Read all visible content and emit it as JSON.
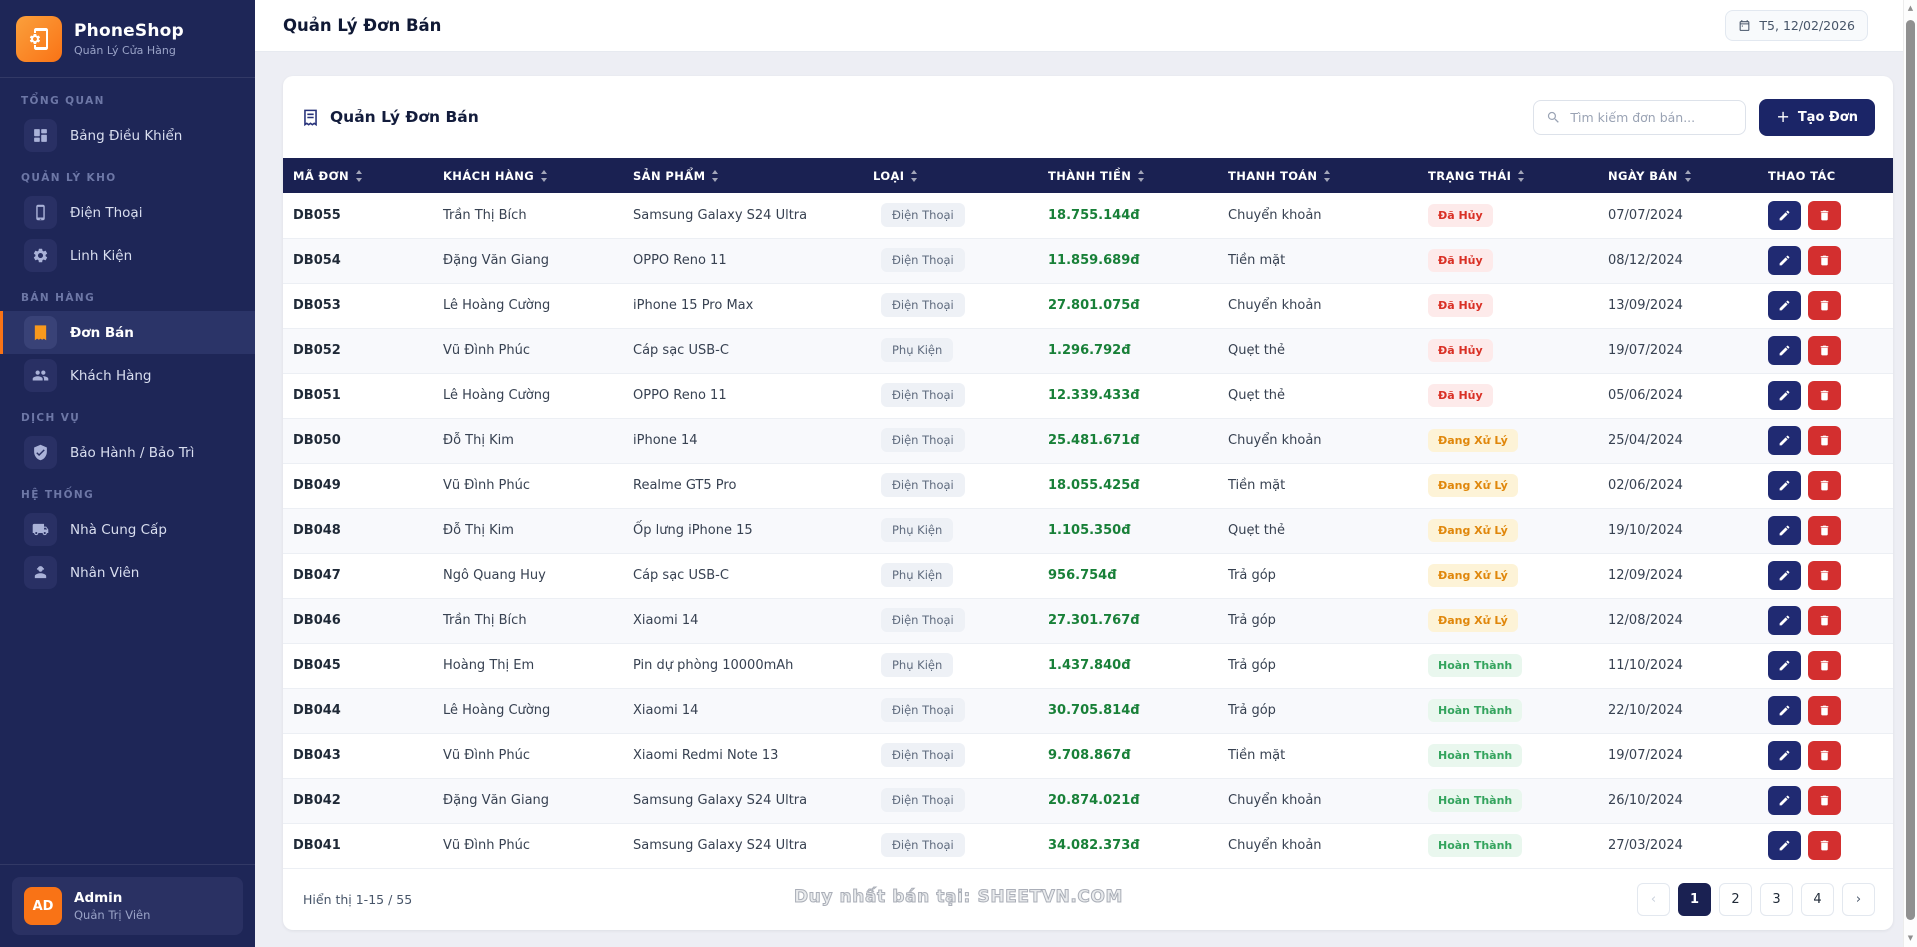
{
  "colors": {
    "accent_orange": "#f97316",
    "navy_header": "#1a2152",
    "sidebar_bg": "#1e2657",
    "amount_green": "#188038",
    "edit_button": "#202a72",
    "delete_button": "#d32f2f",
    "status": {
      "cancelled": {
        "bg": "#fdeaea",
        "text": "#d93025"
      },
      "processing": {
        "bg": "#fdf3d7",
        "text": "#e0870b"
      },
      "completed": {
        "bg": "#e9f7ee",
        "text": "#34a45e"
      }
    }
  },
  "app": {
    "name": "PhoneShop",
    "tagline": "Quản Lý Cửa Hàng",
    "logo_icon": "phone-gear-icon"
  },
  "sidebar": {
    "sections": [
      {
        "label": "TỔNG QUAN",
        "items": [
          {
            "id": "dashboard",
            "label": "Bảng Điều Khiển",
            "icon": "dashboard-icon",
            "active": false
          }
        ]
      },
      {
        "label": "QUẢN LÝ KHO",
        "items": [
          {
            "id": "phones",
            "label": "Điện Thoại",
            "icon": "phone-icon",
            "active": false
          },
          {
            "id": "components",
            "label": "Linh Kiện",
            "icon": "gear-icon",
            "active": false
          }
        ]
      },
      {
        "label": "BÁN HÀNG",
        "items": [
          {
            "id": "orders",
            "label": "Đơn Bán",
            "icon": "receipt-icon",
            "active": true
          },
          {
            "id": "customers",
            "label": "Khách Hàng",
            "icon": "people-icon",
            "active": false
          }
        ]
      },
      {
        "label": "DỊCH VỤ",
        "items": [
          {
            "id": "warranty",
            "label": "Bảo Hành / Bảo Trì",
            "icon": "shield-check-icon",
            "active": false
          }
        ]
      },
      {
        "label": "HỆ THỐNG",
        "items": [
          {
            "id": "suppliers",
            "label": "Nhà Cung Cấp",
            "icon": "truck-icon",
            "active": false
          },
          {
            "id": "staff",
            "label": "Nhân Viên",
            "icon": "worker-icon",
            "active": false
          }
        ]
      }
    ],
    "user": {
      "initials": "AD",
      "name": "Admin",
      "role": "Quản Trị Viên"
    }
  },
  "header": {
    "title": "Quản Lý Đơn Bán",
    "date_label": "T5, 12/02/2026"
  },
  "panel": {
    "title": "Quản Lý Đơn Bán",
    "search_placeholder": "Tìm kiếm đơn bán...",
    "create_label": "Tạo Đơn"
  },
  "table": {
    "columns": [
      {
        "label": "MÃ ĐƠN",
        "sortable": true
      },
      {
        "label": "KHÁCH HÀNG",
        "sortable": true
      },
      {
        "label": "SẢN PHẨM",
        "sortable": true
      },
      {
        "label": "LOẠI",
        "sortable": true
      },
      {
        "label": "THÀNH TIỀN",
        "sortable": true
      },
      {
        "label": "THANH TOÁN",
        "sortable": true
      },
      {
        "label": "TRẠNG THÁI",
        "sortable": true
      },
      {
        "label": "NGÀY BÁN",
        "sortable": true
      },
      {
        "label": "THAO TÁC",
        "sortable": false
      }
    ],
    "rows": [
      {
        "code": "DB055",
        "customer": "Trần Thị Bích",
        "product": "Samsung Galaxy S24 Ultra",
        "category": "Điện Thoại",
        "amount": "18.755.144đ",
        "payment": "Chuyển khoản",
        "status": "Đã Hủy",
        "status_type": "cancelled",
        "date": "07/07/2024"
      },
      {
        "code": "DB054",
        "customer": "Đặng Văn Giang",
        "product": "OPPO Reno 11",
        "category": "Điện Thoại",
        "amount": "11.859.689đ",
        "payment": "Tiền mặt",
        "status": "Đã Hủy",
        "status_type": "cancelled",
        "date": "08/12/2024"
      },
      {
        "code": "DB053",
        "customer": "Lê Hoàng Cường",
        "product": "iPhone 15 Pro Max",
        "category": "Điện Thoại",
        "amount": "27.801.075đ",
        "payment": "Chuyển khoản",
        "status": "Đã Hủy",
        "status_type": "cancelled",
        "date": "13/09/2024"
      },
      {
        "code": "DB052",
        "customer": "Vũ Đình Phúc",
        "product": "Cáp sạc USB-C",
        "category": "Phụ Kiện",
        "amount": "1.296.792đ",
        "payment": "Quẹt thẻ",
        "status": "Đã Hủy",
        "status_type": "cancelled",
        "date": "19/07/2024"
      },
      {
        "code": "DB051",
        "customer": "Lê Hoàng Cường",
        "product": "OPPO Reno 11",
        "category": "Điện Thoại",
        "amount": "12.339.433đ",
        "payment": "Quẹt thẻ",
        "status": "Đã Hủy",
        "status_type": "cancelled",
        "date": "05/06/2024"
      },
      {
        "code": "DB050",
        "customer": "Đỗ Thị Kim",
        "product": "iPhone 14",
        "category": "Điện Thoại",
        "amount": "25.481.671đ",
        "payment": "Chuyển khoản",
        "status": "Đang Xử Lý",
        "status_type": "processing",
        "date": "25/04/2024"
      },
      {
        "code": "DB049",
        "customer": "Vũ Đình Phúc",
        "product": "Realme GT5 Pro",
        "category": "Điện Thoại",
        "amount": "18.055.425đ",
        "payment": "Tiền mặt",
        "status": "Đang Xử Lý",
        "status_type": "processing",
        "date": "02/06/2024"
      },
      {
        "code": "DB048",
        "customer": "Đỗ Thị Kim",
        "product": "Ốp lưng iPhone 15",
        "category": "Phụ Kiện",
        "amount": "1.105.350đ",
        "payment": "Quẹt thẻ",
        "status": "Đang Xử Lý",
        "status_type": "processing",
        "date": "19/10/2024"
      },
      {
        "code": "DB047",
        "customer": "Ngô Quang Huy",
        "product": "Cáp sạc USB-C",
        "category": "Phụ Kiện",
        "amount": "956.754đ",
        "payment": "Trả góp",
        "status": "Đang Xử Lý",
        "status_type": "processing",
        "date": "12/09/2024"
      },
      {
        "code": "DB046",
        "customer": "Trần Thị Bích",
        "product": "Xiaomi 14",
        "category": "Điện Thoại",
        "amount": "27.301.767đ",
        "payment": "Trả góp",
        "status": "Đang Xử Lý",
        "status_type": "processing",
        "date": "12/08/2024"
      },
      {
        "code": "DB045",
        "customer": "Hoàng Thị Em",
        "product": "Pin dự phòng 10000mAh",
        "category": "Phụ Kiện",
        "amount": "1.437.840đ",
        "payment": "Trả góp",
        "status": "Hoàn Thành",
        "status_type": "completed",
        "date": "11/10/2024"
      },
      {
        "code": "DB044",
        "customer": "Lê Hoàng Cường",
        "product": "Xiaomi 14",
        "category": "Điện Thoại",
        "amount": "30.705.814đ",
        "payment": "Trả góp",
        "status": "Hoàn Thành",
        "status_type": "completed",
        "date": "22/10/2024"
      },
      {
        "code": "DB043",
        "customer": "Vũ Đình Phúc",
        "product": "Xiaomi Redmi Note 13",
        "category": "Điện Thoại",
        "amount": "9.708.867đ",
        "payment": "Tiền mặt",
        "status": "Hoàn Thành",
        "status_type": "completed",
        "date": "19/07/2024"
      },
      {
        "code": "DB042",
        "customer": "Đặng Văn Giang",
        "product": "Samsung Galaxy S24 Ultra",
        "category": "Điện Thoại",
        "amount": "20.874.021đ",
        "payment": "Chuyển khoản",
        "status": "Hoàn Thành",
        "status_type": "completed",
        "date": "26/10/2024"
      },
      {
        "code": "DB041",
        "customer": "Vũ Đình Phúc",
        "product": "Samsung Galaxy S24 Ultra",
        "category": "Điện Thoại",
        "amount": "34.082.373đ",
        "payment": "Chuyển khoản",
        "status": "Hoàn Thành",
        "status_type": "completed",
        "date": "27/03/2024"
      }
    ]
  },
  "footer": {
    "showing": "Hiển thị 1-15 / 55",
    "watermark": "Duy nhất bán tại: SHEETVN.COM",
    "pagination": {
      "prev": "‹",
      "next": "›",
      "pages": [
        "1",
        "2",
        "3",
        "4"
      ],
      "active": "1"
    }
  }
}
